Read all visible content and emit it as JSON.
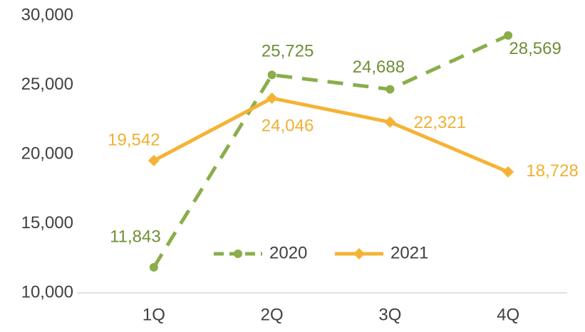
{
  "chart_data": {
    "type": "line",
    "categories": [
      "1Q",
      "2Q",
      "3Q",
      "4Q"
    ],
    "series": [
      {
        "name": "2020",
        "color": "#8aae4a",
        "label_color": "#6f8f36",
        "dashed": true,
        "marker": "circle",
        "values": [
          11843,
          25725,
          24688,
          28569
        ],
        "value_labels": [
          "11,843",
          "25,725",
          "24,688",
          "28,569"
        ]
      },
      {
        "name": "2021",
        "color": "#f5b335",
        "label_color": "#f0b032",
        "dashed": false,
        "marker": "diamond",
        "values": [
          19542,
          24046,
          22321,
          18728
        ],
        "value_labels": [
          "19,542",
          "24,046",
          "22,321",
          "18,728"
        ]
      }
    ],
    "ylim": [
      10000,
      30000
    ],
    "yticks": [
      {
        "value": 10000,
        "label": "10,000"
      },
      {
        "value": 15000,
        "label": "15,000"
      },
      {
        "value": 20000,
        "label": "20,000"
      },
      {
        "value": 25000,
        "label": "25,000"
      },
      {
        "value": 30000,
        "label": "30,000"
      }
    ],
    "grid": false,
    "legend": "bottom"
  }
}
